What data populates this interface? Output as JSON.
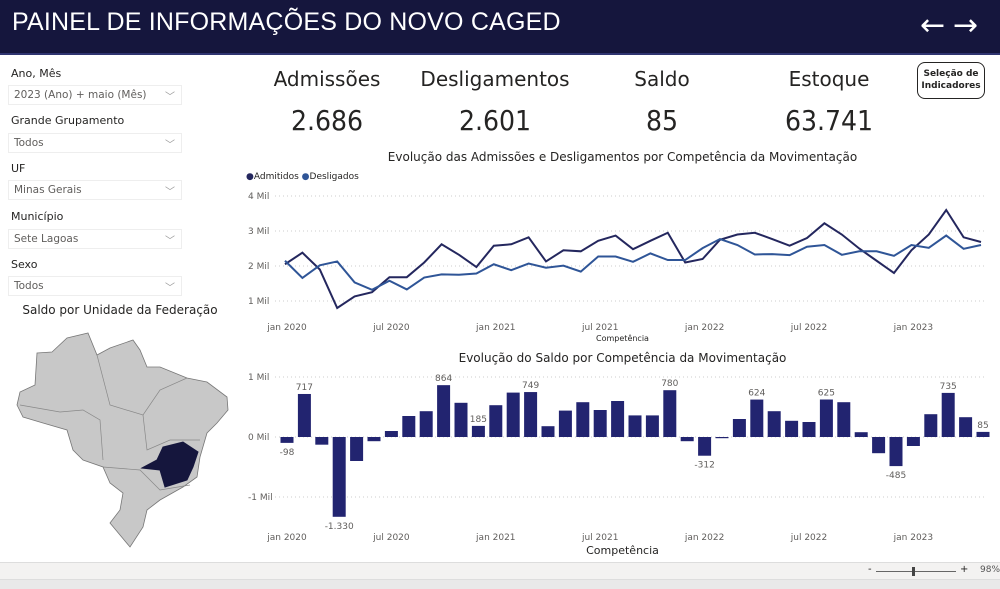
{
  "header": {
    "title": "PAINEL DE INFORMAÇÕES DO NOVO CAGED",
    "back_icon": "←",
    "forward_icon": "→"
  },
  "filters": [
    {
      "label": "Ano, Mês",
      "value": "2023 (Ano) + maio (Mês)"
    },
    {
      "label": "Grande Grupamento",
      "value": "Todos"
    },
    {
      "label": "UF",
      "value": "Minas Gerais"
    },
    {
      "label": "Município",
      "value": "Sete Lagoas"
    },
    {
      "label": "Sexo",
      "value": "Todos"
    }
  ],
  "map": {
    "title": "Saldo por Unidade da Federação",
    "highlight": "Minas Gerais",
    "highlight_color": "#15163d"
  },
  "kpis": [
    {
      "label": "Admissões",
      "value": "2.686"
    },
    {
      "label": "Desligamentos",
      "value": "2.601"
    },
    {
      "label": "Saldo",
      "value": "85"
    },
    {
      "label": "Estoque",
      "value": "63.741"
    }
  ],
  "selection_button": {
    "line1": "Seleção de",
    "line2": "Indicadores"
  },
  "colors": {
    "admitidos": "#24275e",
    "desligados": "#2f5597",
    "bars": "#222470",
    "header": "#15163d"
  },
  "chart_data": [
    {
      "type": "line",
      "title": "Evolução das Admissões e Desligamentos por Competência da Movimentação",
      "xlabel": "Competência",
      "ylabel": "",
      "ylim": [
        1000,
        4000
      ],
      "yticks": [
        {
          "v": 4000,
          "label": "4 Mil"
        },
        {
          "v": 3000,
          "label": "3 Mil"
        },
        {
          "v": 2000,
          "label": "2 Mil"
        },
        {
          "v": 1000,
          "label": "1 Mil"
        }
      ],
      "xticks": [
        {
          "i": 0,
          "label": "jan 2020"
        },
        {
          "i": 6,
          "label": "jul 2020"
        },
        {
          "i": 12,
          "label": "jan 2021"
        },
        {
          "i": 18,
          "label": "jul 2021"
        },
        {
          "i": 24,
          "label": "jan 2022"
        },
        {
          "i": 30,
          "label": "jul 2022"
        },
        {
          "i": 36,
          "label": "jan 2023"
        }
      ],
      "legend": "top-left",
      "series": [
        {
          "name": "Admitidos",
          "values": [
            2050,
            2380,
            1900,
            800,
            1130,
            1250,
            1680,
            1680,
            2100,
            2620,
            2320,
            1970,
            2580,
            2620,
            2820,
            2130,
            2450,
            2420,
            2720,
            2870,
            2480,
            2720,
            2950,
            2100,
            2200,
            2750,
            2900,
            2950,
            2770,
            2580,
            2800,
            3220,
            2900,
            2500,
            2150,
            1800,
            2450,
            2900,
            3600,
            2820,
            2686
          ]
        },
        {
          "name": "Desligados",
          "values": [
            2150,
            1660,
            2020,
            2130,
            1530,
            1320,
            1580,
            1330,
            1670,
            1760,
            1750,
            1785,
            2050,
            1880,
            2070,
            1950,
            2010,
            1840,
            2270,
            2270,
            2120,
            2360,
            2170,
            2170,
            2510,
            2770,
            2600,
            2330,
            2340,
            2310,
            2550,
            2600,
            2320,
            2420,
            2420,
            2290,
            2600,
            2520,
            2870,
            2490,
            2601
          ]
        }
      ]
    },
    {
      "type": "bar",
      "title": "Evolução do Saldo por Competência da Movimentação",
      "xlabel": "Competência",
      "ylim": [
        -1400,
        1000
      ],
      "yticks": [
        {
          "v": 1000,
          "label": "1 Mil"
        },
        {
          "v": 0,
          "label": "0 Mil"
        },
        {
          "v": -1000,
          "label": "-1 Mil"
        }
      ],
      "xticks": [
        {
          "i": 0,
          "label": "jan 2020"
        },
        {
          "i": 6,
          "label": "jul 2020"
        },
        {
          "i": 12,
          "label": "jan 2021"
        },
        {
          "i": 18,
          "label": "jul 2021"
        },
        {
          "i": 24,
          "label": "jan 2022"
        },
        {
          "i": 30,
          "label": "jul 2022"
        },
        {
          "i": 36,
          "label": "jan 2023"
        }
      ],
      "values": [
        -98,
        717,
        -128,
        -1330,
        -400,
        -70,
        100,
        350,
        430,
        864,
        570,
        185,
        530,
        740,
        749,
        180,
        440,
        580,
        450,
        600,
        360,
        360,
        780,
        -70,
        -312,
        -20,
        300,
        624,
        430,
        270,
        250,
        625,
        580,
        80,
        -270,
        -485,
        -150,
        380,
        735,
        330,
        85
      ],
      "data_labels": [
        {
          "i": 0,
          "label": "-98"
        },
        {
          "i": 1,
          "label": "717"
        },
        {
          "i": 3,
          "label": "-1.330"
        },
        {
          "i": 9,
          "label": "864"
        },
        {
          "i": 11,
          "label": "185"
        },
        {
          "i": 14,
          "label": "749"
        },
        {
          "i": 22,
          "label": "780"
        },
        {
          "i": 24,
          "label": "-312"
        },
        {
          "i": 27,
          "label": "624"
        },
        {
          "i": 31,
          "label": "625"
        },
        {
          "i": 35,
          "label": "-485"
        },
        {
          "i": 38,
          "label": "735"
        },
        {
          "i": 40,
          "label": "85"
        }
      ]
    }
  ],
  "footer": {
    "zoom_minus": "-",
    "zoom_plus": "+",
    "zoom_level": "98%",
    "zoom_fraction": 0.45
  }
}
